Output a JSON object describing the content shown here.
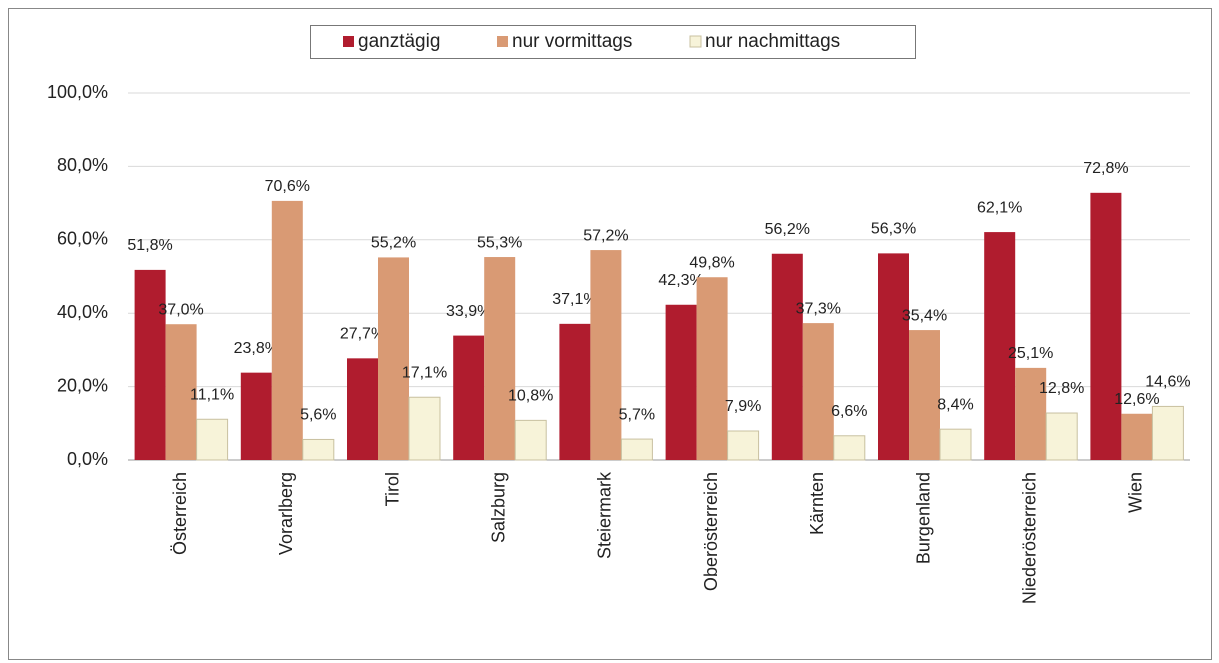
{
  "chart_data": {
    "type": "bar",
    "categories": [
      "Österreich",
      "Vorarlberg",
      "Tirol",
      "Salzburg",
      "Steiermark",
      "Oberösterreich",
      "Kärnten",
      "Burgenland",
      "Niederösterreich",
      "Wien"
    ],
    "series": [
      {
        "name": "ganztägig",
        "color": "#b01c2e",
        "values": [
          51.8,
          23.8,
          27.7,
          33.9,
          37.1,
          42.3,
          56.2,
          56.3,
          62.1,
          72.8
        ],
        "value_labels": [
          "51,8%",
          "23,8%",
          "27,7%",
          "33,9%",
          "37,1%",
          "42,3%",
          "56,2%",
          "56,3%",
          "62,1%",
          "72,8%"
        ]
      },
      {
        "name": "nur vormittags",
        "color": "#d99a74",
        "values": [
          37.0,
          70.6,
          55.2,
          55.3,
          57.2,
          49.8,
          37.3,
          35.4,
          25.1,
          12.6
        ],
        "value_labels": [
          "37,0%",
          "70,6%",
          "55,2%",
          "55,3%",
          "57,2%",
          "49,8%",
          "37,3%",
          "35,4%",
          "25,1%",
          "12,6%"
        ]
      },
      {
        "name": "nur nachmittags",
        "color": "#f7f3d9",
        "values": [
          11.1,
          5.6,
          17.1,
          10.8,
          5.7,
          7.9,
          6.6,
          8.4,
          12.8,
          14.6
        ],
        "value_labels": [
          "11,1%",
          "5,6%",
          "17,1%",
          "10,8%",
          "5,7%",
          "7,9%",
          "6,6%",
          "8,4%",
          "12,8%",
          "14,6%"
        ]
      }
    ],
    "ylim": [
      0,
      100
    ],
    "yticks": [
      {
        "value": 0,
        "label": "0,0%"
      },
      {
        "value": 20,
        "label": "20,0%"
      },
      {
        "value": 40,
        "label": "40,0%"
      },
      {
        "value": 60,
        "label": "60,0%"
      },
      {
        "value": 80,
        "label": "80,0%"
      },
      {
        "value": 100,
        "label": "100,0%"
      }
    ],
    "grid": true,
    "legend": "top"
  }
}
